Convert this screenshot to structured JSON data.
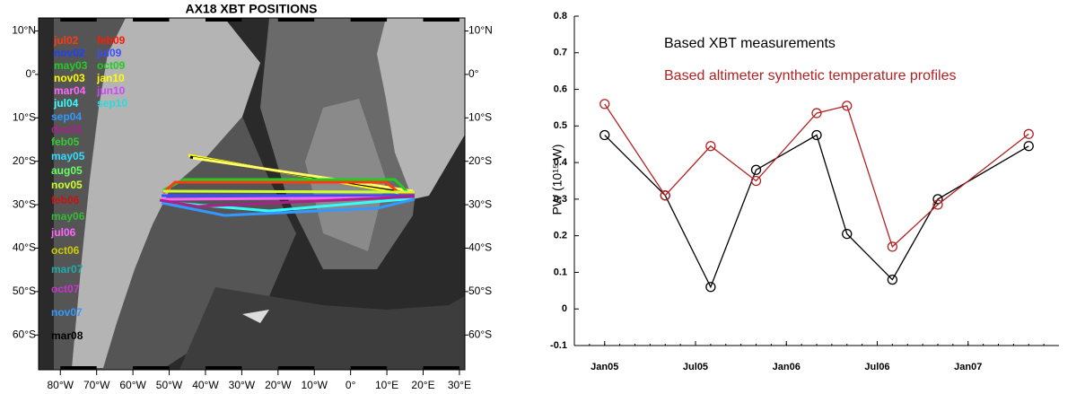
{
  "chart_data": [
    {
      "type": "map",
      "title": "AX18 XBT POSITIONS",
      "xlim": [
        -86,
        31.5
      ],
      "ylim": [
        -68,
        13
      ],
      "xticks": [
        {
          "value": -80,
          "label": "80°W"
        },
        {
          "value": -70,
          "label": "70°W"
        },
        {
          "value": -60,
          "label": "60°W"
        },
        {
          "value": -50,
          "label": "50°W"
        },
        {
          "value": -40,
          "label": "40°W"
        },
        {
          "value": -30,
          "label": "30°W"
        },
        {
          "value": -20,
          "label": "20°W"
        },
        {
          "value": -10,
          "label": "10°W"
        },
        {
          "value": 0,
          "label": "0°"
        },
        {
          "value": 10,
          "label": "10°E"
        },
        {
          "value": 20,
          "label": "20°E"
        },
        {
          "value": 30,
          "label": "30°E"
        }
      ],
      "yticks": [
        {
          "value": 10,
          "label": "10°N"
        },
        {
          "value": 0,
          "label": "0°"
        },
        {
          "value": -10,
          "label": "10°S"
        },
        {
          "value": -20,
          "label": "20°S"
        },
        {
          "value": -30,
          "label": "30°S"
        },
        {
          "value": -40,
          "label": "40°S"
        },
        {
          "value": -50,
          "label": "50°S"
        },
        {
          "value": -60,
          "label": "60°S"
        }
      ],
      "series": [
        {
          "name": "jul02",
          "color": "#ff3a10"
        },
        {
          "name": "feb09",
          "color": "#ff1a00"
        },
        {
          "name": "nov02",
          "color": "#2040ff"
        },
        {
          "name": "jul09",
          "color": "#3a4cff"
        },
        {
          "name": "may03",
          "color": "#22cc22"
        },
        {
          "name": "oct09",
          "color": "#22cc22"
        },
        {
          "name": "nov03",
          "color": "#ffff00"
        },
        {
          "name": "jan10",
          "color": "#ffff00"
        },
        {
          "name": "mar04",
          "color": "#ff66ff"
        },
        {
          "name": "jun10",
          "color": "#cc44ff"
        },
        {
          "name": "jul04",
          "color": "#33ffff"
        },
        {
          "name": "sep10",
          "color": "#22dddd"
        },
        {
          "name": "sep04",
          "color": "#3399ff"
        },
        {
          "name": "dec04",
          "color": "#aa2288"
        },
        {
          "name": "feb05",
          "color": "#33cc33"
        },
        {
          "name": "may05",
          "color": "#33ddff"
        },
        {
          "name": "aug05",
          "color": "#66ff66"
        },
        {
          "name": "nov05",
          "color": "#ccff33"
        },
        {
          "name": "feb06",
          "color": "#cc1111"
        },
        {
          "name": "may06",
          "color": "#33bb33"
        },
        {
          "name": "jul06",
          "color": "#ff66ff"
        },
        {
          "name": "oct06",
          "color": "#cccc00"
        },
        {
          "name": "mar07",
          "color": "#22aaaa"
        },
        {
          "name": "oct07",
          "color": "#cc33cc"
        },
        {
          "name": "nov07",
          "color": "#3399ff"
        },
        {
          "name": "mar08",
          "color": "#000000"
        }
      ]
    },
    {
      "type": "line",
      "ylabel": "PW (10¹⁵ W)",
      "x": [
        "2005-01",
        "2005-05",
        "2005-08",
        "2005-11",
        "2006-03",
        "2006-05",
        "2006-08",
        "2006-11",
        "2007-05"
      ],
      "xlim": [
        "2004-11",
        "2007-07"
      ],
      "xticks": [
        {
          "value": "2005-01",
          "label": "Jan05"
        },
        {
          "value": "2005-07",
          "label": "Jul05"
        },
        {
          "value": "2006-01",
          "label": "Jan06"
        },
        {
          "value": "2006-07",
          "label": "Jul06"
        },
        {
          "value": "2007-01",
          "label": "Jan07"
        }
      ],
      "ylim": [
        -0.1,
        0.8
      ],
      "yticks": [
        -0.1,
        0,
        0.1,
        0.2,
        0.3,
        0.4,
        0.5,
        0.6,
        0.7,
        0.8
      ],
      "series": [
        {
          "name": "Based XBT measurements",
          "color": "#000000",
          "values": [
            0.475,
            0.31,
            0.06,
            0.38,
            0.475,
            0.205,
            0.08,
            0.3,
            0.445
          ]
        },
        {
          "name": "Based altimeter synthetic temperature profiles",
          "color": "#b22222",
          "values": [
            0.56,
            0.31,
            0.445,
            0.35,
            0.535,
            0.555,
            0.17,
            0.285,
            0.478
          ]
        }
      ]
    }
  ]
}
